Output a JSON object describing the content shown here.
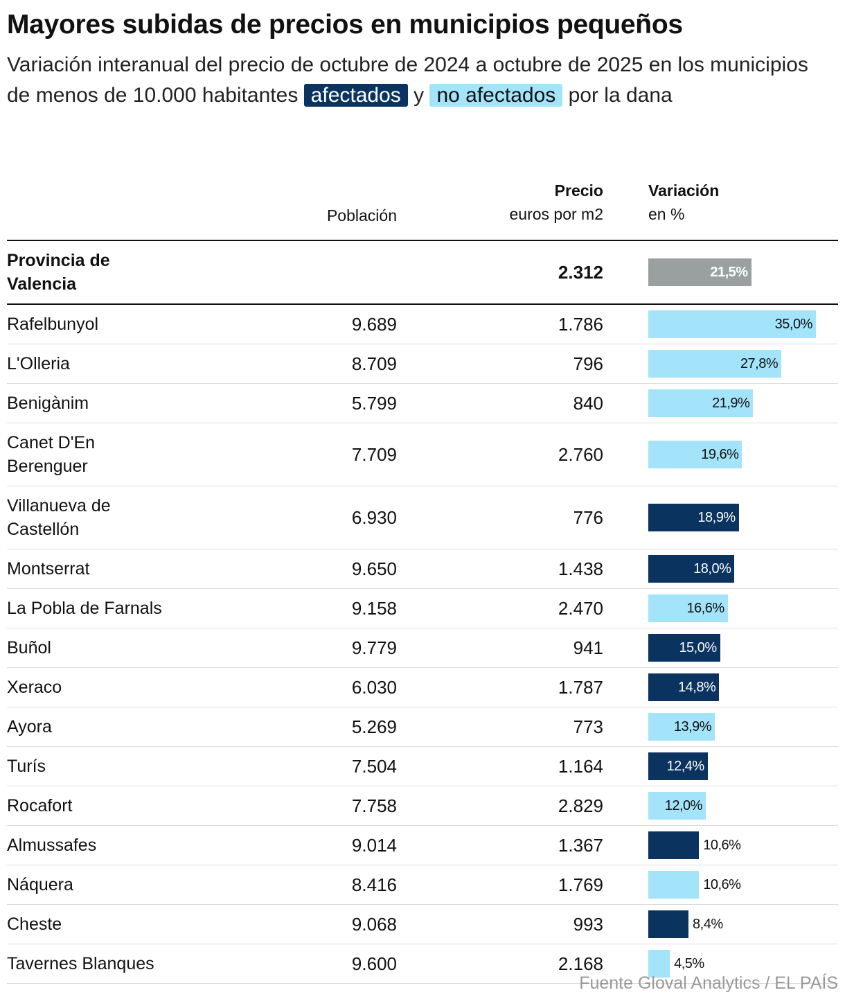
{
  "header": {
    "title": "Mayores subidas de precios en municipios pequeños",
    "subtitle": {
      "before": "Variación interanual del precio de octubre de 2024 a octubre de 2025 en los municipios de menos de 10.000 habitantes",
      "affected": "afectados",
      "middle": "y",
      "not_affected": "no afectados",
      "after": "por la dana"
    }
  },
  "columns": {
    "population": "Población",
    "price_title": "Precio",
    "price_unit": "euros por m2",
    "variation_title": "Variación",
    "variation_unit": "en %"
  },
  "colors": {
    "affected": "#0a3360",
    "not_affected": "#a3e4fb",
    "total": "#9aa0a0"
  },
  "total": {
    "name": "Provincia de Valencia",
    "price": "2.312",
    "variation": 21.5,
    "variation_label": "21,5%"
  },
  "rows": [
    {
      "name": "Rafelbunyol",
      "population": "9.689",
      "price": "1.786",
      "variation": 35.0,
      "variation_label": "35,0%",
      "affected": false
    },
    {
      "name": "L'Olleria",
      "population": "8.709",
      "price": "796",
      "variation": 27.8,
      "variation_label": "27,8%",
      "affected": false
    },
    {
      "name": "Benigànim",
      "population": "5.799",
      "price": "840",
      "variation": 21.9,
      "variation_label": "21,9%",
      "affected": false
    },
    {
      "name": "Canet D'En Berenguer",
      "population": "7.709",
      "price": "2.760",
      "variation": 19.6,
      "variation_label": "19,6%",
      "affected": false
    },
    {
      "name": "Villanueva de Castellón",
      "population": "6.930",
      "price": "776",
      "variation": 18.9,
      "variation_label": "18,9%",
      "affected": true
    },
    {
      "name": "Montserrat",
      "population": "9.650",
      "price": "1.438",
      "variation": 18.0,
      "variation_label": "18,0%",
      "affected": true
    },
    {
      "name": "La Pobla de Farnals",
      "population": "9.158",
      "price": "2.470",
      "variation": 16.6,
      "variation_label": "16,6%",
      "affected": false
    },
    {
      "name": "Buñol",
      "population": "9.779",
      "price": "941",
      "variation": 15.0,
      "variation_label": "15,0%",
      "affected": true
    },
    {
      "name": "Xeraco",
      "population": "6.030",
      "price": "1.787",
      "variation": 14.8,
      "variation_label": "14,8%",
      "affected": true
    },
    {
      "name": "Ayora",
      "population": "5.269",
      "price": "773",
      "variation": 13.9,
      "variation_label": "13,9%",
      "affected": false
    },
    {
      "name": "Turís",
      "population": "7.504",
      "price": "1.164",
      "variation": 12.4,
      "variation_label": "12,4%",
      "affected": true
    },
    {
      "name": "Rocafort",
      "population": "7.758",
      "price": "2.829",
      "variation": 12.0,
      "variation_label": "12,0%",
      "affected": false
    },
    {
      "name": "Almussafes",
      "population": "9.014",
      "price": "1.367",
      "variation": 10.6,
      "variation_label": "10,6%",
      "affected": true
    },
    {
      "name": "Náquera",
      "population": "8.416",
      "price": "1.769",
      "variation": 10.6,
      "variation_label": "10,6%",
      "affected": false
    },
    {
      "name": "Cheste",
      "population": "9.068",
      "price": "993",
      "variation": 8.4,
      "variation_label": "8,4%",
      "affected": true
    },
    {
      "name": "Tavernes Blanques",
      "population": "9.600",
      "price": "2.168",
      "variation": 4.5,
      "variation_label": "4,5%",
      "affected": false
    }
  ],
  "source": "Fuente Gloval Analytics / EL PAÍS"
}
